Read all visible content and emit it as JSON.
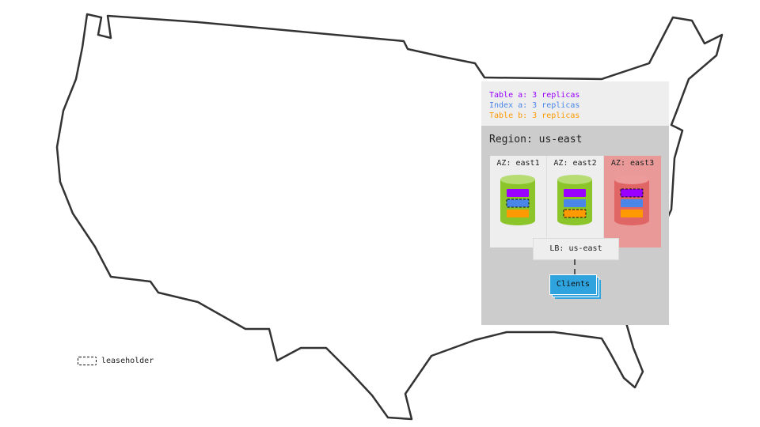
{
  "legend": {
    "items": [
      {
        "text": "Table a: 3 replicas",
        "color": "#9900ff"
      },
      {
        "text": "Index a: 3 replicas",
        "color": "#4a86e8"
      },
      {
        "text": "Table b: 3 replicas",
        "color": "#ff9900"
      }
    ],
    "leaseholder": "leaseholder"
  },
  "region": {
    "title": "Region: us-east",
    "zones": [
      {
        "label": "AZ: east1",
        "status": "healthy",
        "leaseholder": "Index a"
      },
      {
        "label": "AZ: east2",
        "status": "healthy",
        "leaseholder": "Table b"
      },
      {
        "label": "AZ: east3",
        "status": "failed",
        "leaseholder": "Table a"
      }
    ],
    "lb": "LB: us-east",
    "clients": "Clients"
  },
  "colors": {
    "healthy": "#8cc52a",
    "failed": "#e06666",
    "failed_zone_bg": "#ea9999",
    "clients": "#2ea3de"
  }
}
